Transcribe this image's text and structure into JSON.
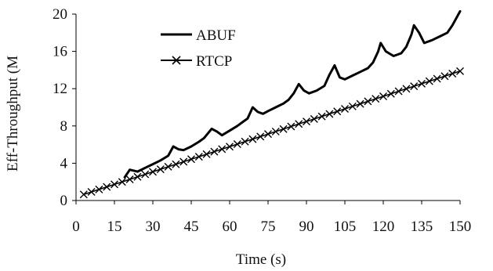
{
  "chart_data": {
    "type": "line",
    "title": "",
    "xlabel": "Time (s)",
    "ylabel": "Eff-Throughput (M",
    "xlim": [
      0,
      150
    ],
    "ylim": [
      0,
      20
    ],
    "x_ticks": [
      "0",
      "15",
      "30",
      "45",
      "60",
      "75",
      "90",
      "105",
      "120",
      "135",
      "150"
    ],
    "y_ticks": [
      "0",
      "4",
      "8",
      "12",
      "16",
      "20"
    ],
    "grid": false,
    "legend_position": "top-left",
    "series": [
      {
        "name": "ABUF",
        "color": "#000000",
        "marker": "none",
        "x": [
          19,
          21,
          24,
          27,
          30,
          33,
          36,
          38,
          40,
          42,
          45,
          48,
          50,
          53,
          55,
          57,
          60,
          63,
          65,
          67,
          69,
          71,
          73,
          75,
          78,
          81,
          83,
          85,
          87,
          89,
          91,
          94,
          97,
          99,
          101,
          103,
          105,
          108,
          111,
          114,
          116,
          118,
          119,
          121,
          124,
          127,
          129,
          131,
          132,
          134,
          136,
          139,
          142,
          145,
          147,
          150
        ],
        "y": [
          2.5,
          3.3,
          3.1,
          3.5,
          3.9,
          4.3,
          4.8,
          5.8,
          5.5,
          5.4,
          5.8,
          6.3,
          6.7,
          7.7,
          7.4,
          7.0,
          7.5,
          8.0,
          8.4,
          8.8,
          10.0,
          9.5,
          9.3,
          9.6,
          10.0,
          10.4,
          10.8,
          11.5,
          12.5,
          11.8,
          11.5,
          11.8,
          12.3,
          13.5,
          14.5,
          13.2,
          13.0,
          13.4,
          13.8,
          14.2,
          14.8,
          16.0,
          16.9,
          16.0,
          15.5,
          15.8,
          16.5,
          17.8,
          18.8,
          18.0,
          16.9,
          17.2,
          17.6,
          18.0,
          18.8,
          20.3
        ]
      },
      {
        "name": "RTCP",
        "color": "#000000",
        "marker": "x",
        "x": [
          3,
          6,
          9,
          12,
          15,
          18,
          21,
          24,
          27,
          30,
          33,
          36,
          39,
          42,
          45,
          48,
          51,
          54,
          57,
          60,
          63,
          66,
          69,
          72,
          75,
          78,
          81,
          84,
          87,
          90,
          93,
          96,
          99,
          102,
          105,
          108,
          111,
          114,
          117,
          120,
          123,
          126,
          129,
          132,
          135,
          138,
          141,
          144,
          147,
          150
        ],
        "y": [
          0.65,
          0.92,
          1.19,
          1.46,
          1.73,
          2.0,
          2.27,
          2.54,
          2.81,
          3.08,
          3.35,
          3.62,
          3.89,
          4.16,
          4.43,
          4.7,
          4.97,
          5.24,
          5.51,
          5.78,
          6.05,
          6.32,
          6.59,
          6.86,
          7.13,
          7.4,
          7.67,
          7.94,
          8.21,
          8.48,
          8.75,
          9.02,
          9.29,
          9.56,
          9.83,
          10.1,
          10.37,
          10.64,
          10.91,
          11.18,
          11.45,
          11.72,
          11.99,
          12.26,
          12.53,
          12.8,
          13.07,
          13.34,
          13.61,
          13.88
        ]
      }
    ]
  }
}
